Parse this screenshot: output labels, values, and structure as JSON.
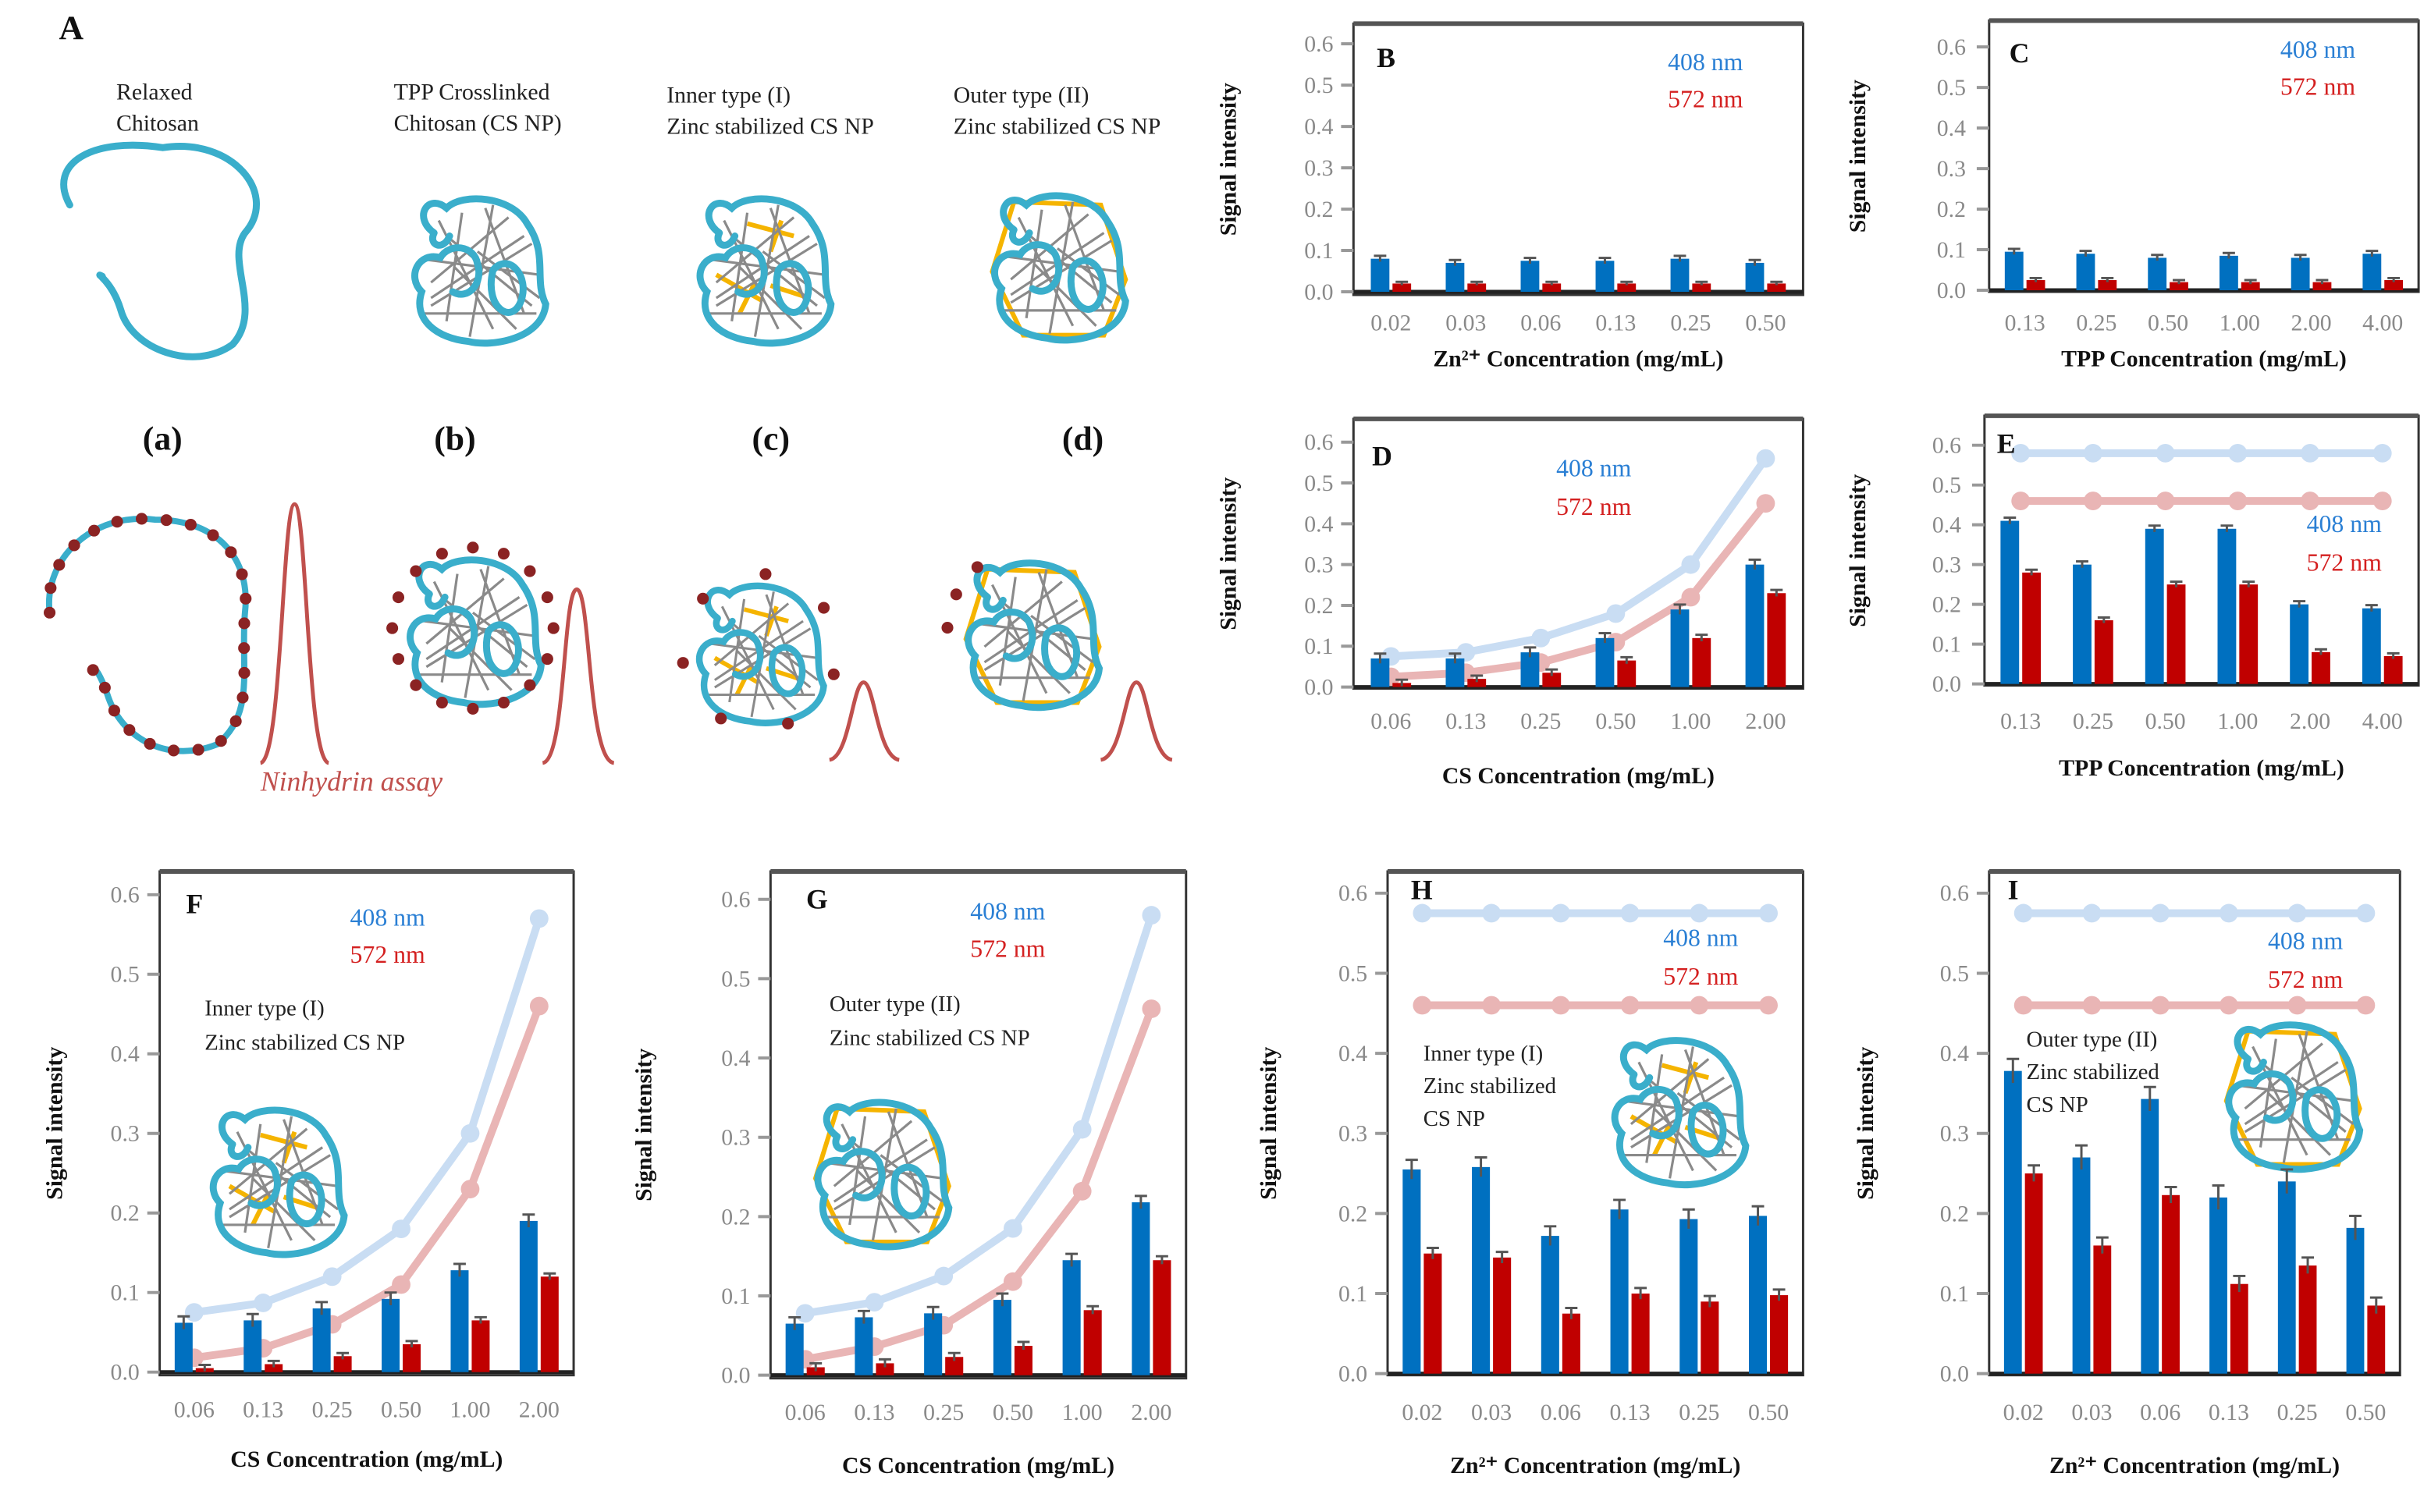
{
  "colors": {
    "bar_408": "#0070c0",
    "bar_572": "#c00000",
    "line_408": "#c9ddf3",
    "line_572": "#e9b5b5",
    "chitosan": "#3aaecb",
    "crosslink": "#888888",
    "zinc": "#f5b400",
    "amine_dot": "#8b2323",
    "peak": "#c0504d",
    "legend_408": "#2a7fd4",
    "legend_572": "#d42020"
  },
  "schematic": {
    "panel_letter": "A",
    "top_labels": [
      {
        "line1": "Relaxed",
        "line2": "Chitosan"
      },
      {
        "line1": "TPP Crosslinked",
        "line2": "Chitosan (CS NP)"
      },
      {
        "line1": "Inner type (I)",
        "line2": "Zinc stabilized CS NP"
      },
      {
        "line1": "Outer type (II)",
        "line2": "Zinc stabilized CS NP"
      }
    ],
    "sublabels": [
      "(a)",
      "(b)",
      "(c)",
      "(d)"
    ],
    "assay_label": "Ninhydrin assay",
    "icons": [
      "relaxed-chitosan-chain",
      "tpp-crosslinked-nanoparticle",
      "inner-zinc-nanoparticle",
      "outer-zinc-nanoparticle",
      "ninhydrin-peak"
    ]
  },
  "chart_data": [
    {
      "panel": "B",
      "type": "bar",
      "categories": [
        "0.02",
        "0.03",
        "0.06",
        "0.13",
        "0.25",
        "0.50"
      ],
      "xlabel": "Zn²⁺ Concentration (mg/mL)",
      "ylabel": "Signal intensity",
      "ylim": [
        0,
        0.6
      ],
      "yticks": [
        "0.0",
        "0.1",
        "0.2",
        "0.3",
        "0.4",
        "0.5",
        "0.6"
      ],
      "legend": [
        "408 nm",
        "572 nm"
      ],
      "legend_placement": "top-right",
      "series": [
        {
          "name": "408 nm",
          "kind": "bar",
          "values": [
            0.08,
            0.07,
            0.075,
            0.075,
            0.08,
            0.07
          ],
          "error": 0.007
        },
        {
          "name": "572 nm",
          "kind": "bar",
          "values": [
            0.02,
            0.02,
            0.02,
            0.02,
            0.02,
            0.02
          ],
          "error": 0.004
        }
      ],
      "annotation": []
    },
    {
      "panel": "C",
      "type": "bar",
      "categories": [
        "0.13",
        "0.25",
        "0.50",
        "1.00",
        "2.00",
        "4.00"
      ],
      "xlabel": "TPP Concentration (mg/mL)",
      "ylabel": "Signal intensity",
      "ylim": [
        0,
        0.6
      ],
      "yticks": [
        "0.0",
        "0.1",
        "0.2",
        "0.3",
        "0.4",
        "0.5",
        "0.6"
      ],
      "legend": [
        "408 nm",
        "572 nm"
      ],
      "legend_placement": "top-right",
      "series": [
        {
          "name": "408 nm",
          "kind": "bar",
          "values": [
            0.095,
            0.09,
            0.08,
            0.085,
            0.08,
            0.09
          ],
          "error": 0.007
        },
        {
          "name": "572 nm",
          "kind": "bar",
          "values": [
            0.025,
            0.025,
            0.02,
            0.02,
            0.02,
            0.025
          ],
          "error": 0.005
        }
      ],
      "annotation": []
    },
    {
      "panel": "D",
      "type": "bar",
      "categories": [
        "0.06",
        "0.13",
        "0.25",
        "0.50",
        "1.00",
        "2.00"
      ],
      "xlabel": "CS Concentration (mg/mL)",
      "ylabel": "Signal intensity",
      "ylim": [
        0,
        0.6
      ],
      "yticks": [
        "0.0",
        "0.1",
        "0.2",
        "0.3",
        "0.4",
        "0.5",
        "0.6"
      ],
      "legend": [
        "408 nm",
        "572 nm"
      ],
      "legend_placement": "top-center",
      "series": [
        {
          "name": "408 nm",
          "kind": "line",
          "values": [
            0.075,
            0.085,
            0.12,
            0.18,
            0.3,
            0.56
          ],
          "error": 0.012
        },
        {
          "name": "572 nm",
          "kind": "line",
          "values": [
            0.025,
            0.035,
            0.06,
            0.11,
            0.22,
            0.45
          ],
          "error": 0.012
        },
        {
          "name": "408 nm",
          "kind": "bar",
          "values": [
            0.07,
            0.07,
            0.085,
            0.12,
            0.19,
            0.3
          ],
          "error": 0.012
        },
        {
          "name": "572 nm",
          "kind": "bar",
          "values": [
            0.01,
            0.02,
            0.035,
            0.065,
            0.12,
            0.23
          ],
          "error": 0.008
        }
      ],
      "annotation": []
    },
    {
      "panel": "E",
      "type": "bar",
      "categories": [
        "0.13",
        "0.25",
        "0.50",
        "1.00",
        "2.00",
        "4.00"
      ],
      "xlabel": "TPP Concentration (mg/mL)",
      "ylabel": "Signal intensity",
      "ylim": [
        0,
        0.6
      ],
      "yticks": [
        "0.0",
        "0.1",
        "0.2",
        "0.3",
        "0.4",
        "0.5",
        "0.6"
      ],
      "legend": [
        "408 nm",
        "572 nm"
      ],
      "legend_placement": "right",
      "series": [
        {
          "name": "408 nm",
          "kind": "line",
          "values": [
            0.58,
            0.58,
            0.58,
            0.58,
            0.58,
            0.58
          ],
          "error": 0
        },
        {
          "name": "572 nm",
          "kind": "line",
          "values": [
            0.46,
            0.46,
            0.46,
            0.46,
            0.46,
            0.46
          ],
          "error": 0
        },
        {
          "name": "408 nm",
          "kind": "bar",
          "values": [
            0.41,
            0.3,
            0.39,
            0.39,
            0.2,
            0.19
          ],
          "error": 0.008
        },
        {
          "name": "572 nm",
          "kind": "bar",
          "values": [
            0.28,
            0.16,
            0.25,
            0.25,
            0.08,
            0.07
          ],
          "error": 0.007
        }
      ],
      "annotation": []
    },
    {
      "panel": "F",
      "type": "bar",
      "categories": [
        "0.06",
        "0.13",
        "0.25",
        "0.50",
        "1.00",
        "2.00"
      ],
      "xlabel": "CS Concentration (mg/mL)",
      "ylabel": "Signal intensity",
      "ylim": [
        0,
        0.6
      ],
      "yticks": [
        "0.0",
        "0.1",
        "0.2",
        "0.3",
        "0.4",
        "0.5",
        "0.6"
      ],
      "legend": [
        "408 nm",
        "572 nm"
      ],
      "legend_placement": "top-center",
      "series": [
        {
          "name": "408 nm",
          "kind": "line",
          "values": [
            0.075,
            0.087,
            0.12,
            0.18,
            0.3,
            0.57
          ],
          "error": 0
        },
        {
          "name": "572 nm",
          "kind": "line",
          "values": [
            0.018,
            0.03,
            0.06,
            0.11,
            0.23,
            0.46
          ],
          "error": 0
        },
        {
          "name": "408 nm",
          "kind": "bar",
          "values": [
            0.062,
            0.065,
            0.08,
            0.092,
            0.128,
            0.19
          ],
          "error": 0.008
        },
        {
          "name": "572 nm",
          "kind": "bar",
          "values": [
            0.005,
            0.01,
            0.02,
            0.035,
            0.065,
            0.12
          ],
          "error": 0.004
        }
      ],
      "annotation": [
        "Inner type (I)",
        "Zinc stabilized CS NP"
      ],
      "inset_icon": "inner-zinc-nanoparticle"
    },
    {
      "panel": "G",
      "type": "bar",
      "categories": [
        "0.06",
        "0.13",
        "0.25",
        "0.50",
        "1.00",
        "2.00"
      ],
      "xlabel": "CS Concentration (mg/mL)",
      "ylabel": "Signal intensity",
      "ylim": [
        0,
        0.6
      ],
      "yticks": [
        "0.0",
        "0.1",
        "0.2",
        "0.3",
        "0.4",
        "0.5",
        "0.6"
      ],
      "legend": [
        "408 nm",
        "572 nm"
      ],
      "legend_placement": "top-center",
      "series": [
        {
          "name": "408 nm",
          "kind": "line",
          "values": [
            0.078,
            0.092,
            0.125,
            0.185,
            0.31,
            0.58
          ],
          "error": 0
        },
        {
          "name": "572 nm",
          "kind": "line",
          "values": [
            0.02,
            0.036,
            0.063,
            0.118,
            0.232,
            0.462
          ],
          "error": 0
        },
        {
          "name": "408 nm",
          "kind": "bar",
          "values": [
            0.065,
            0.073,
            0.078,
            0.095,
            0.145,
            0.218
          ],
          "error": 0.008
        },
        {
          "name": "572 nm",
          "kind": "bar",
          "values": [
            0.01,
            0.015,
            0.023,
            0.037,
            0.082,
            0.145
          ],
          "error": 0.005
        }
      ],
      "annotation": [
        "Outer type (II)",
        "Zinc stabilized CS NP"
      ],
      "inset_icon": "outer-zinc-nanoparticle"
    },
    {
      "panel": "H",
      "type": "bar",
      "categories": [
        "0.02",
        "0.03",
        "0.06",
        "0.13",
        "0.25",
        "0.50"
      ],
      "xlabel": "Zn²⁺ Concentration (mg/mL)",
      "ylabel": "Signal intensity",
      "ylim": [
        0,
        0.6
      ],
      "yticks": [
        "0.0",
        "0.1",
        "0.2",
        "0.3",
        "0.4",
        "0.5",
        "0.6"
      ],
      "legend": [
        "408 nm",
        "572 nm"
      ],
      "legend_placement": "top-right",
      "series": [
        {
          "name": "408 nm",
          "kind": "line",
          "values": [
            0.575,
            0.575,
            0.575,
            0.575,
            0.575,
            0.575
          ],
          "error": 0
        },
        {
          "name": "572 nm",
          "kind": "line",
          "values": [
            0.46,
            0.46,
            0.46,
            0.46,
            0.46,
            0.46
          ],
          "error": 0
        },
        {
          "name": "408 nm",
          "kind": "bar",
          "values": [
            0.255,
            0.258,
            0.172,
            0.205,
            0.193,
            0.197
          ],
          "error": 0.012
        },
        {
          "name": "572 nm",
          "kind": "bar",
          "values": [
            0.15,
            0.145,
            0.075,
            0.1,
            0.09,
            0.098
          ],
          "error": 0.007
        }
      ],
      "annotation": [
        "Inner type (I)",
        "Zinc stabilized",
        "CS NP"
      ],
      "inset_icon": "inner-zinc-nanoparticle"
    },
    {
      "panel": "I",
      "type": "bar",
      "categories": [
        "0.02",
        "0.03",
        "0.06",
        "0.13",
        "0.25",
        "0.50"
      ],
      "xlabel": "Zn²⁺ Concentration (mg/mL)",
      "ylabel": "Signal intensity",
      "ylim": [
        0,
        0.6
      ],
      "yticks": [
        "0.0",
        "0.1",
        "0.2",
        "0.3",
        "0.4",
        "0.5",
        "0.6"
      ],
      "legend": [
        "408 nm",
        "572 nm"
      ],
      "legend_placement": "top-right",
      "series": [
        {
          "name": "408 nm",
          "kind": "line",
          "values": [
            0.575,
            0.575,
            0.575,
            0.575,
            0.575,
            0.575
          ],
          "error": 0
        },
        {
          "name": "572 nm",
          "kind": "line",
          "values": [
            0.46,
            0.46,
            0.46,
            0.46,
            0.46,
            0.46
          ],
          "error": 0
        },
        {
          "name": "408 nm",
          "kind": "bar",
          "values": [
            0.378,
            0.27,
            0.343,
            0.22,
            0.24,
            0.182
          ],
          "error": 0.015
        },
        {
          "name": "572 nm",
          "kind": "bar",
          "values": [
            0.25,
            0.16,
            0.223,
            0.112,
            0.135,
            0.085
          ],
          "error": 0.01
        }
      ],
      "annotation": [
        "Outer type (II)",
        "Zinc stabilized",
        "CS NP"
      ],
      "inset_icon": "outer-zinc-nanoparticle"
    }
  ]
}
